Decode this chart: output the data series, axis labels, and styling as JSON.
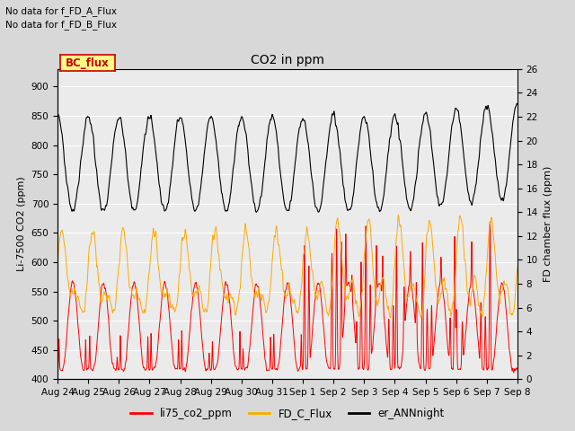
{
  "title": "CO2 in ppm",
  "ylabel_left": "Li-7500 CO2 (ppm)",
  "ylabel_right": "FD chamber flux (ppm)",
  "annotation_lines": [
    "No data for f_FD_A_Flux",
    "No data for f_FD_B_Flux"
  ],
  "bc_flux_label": "BC_flux",
  "legend_labels": [
    "li75_co2_ppm",
    "FD_C_Flux",
    "er_ANNnight"
  ],
  "line_colors": [
    "#ff0000",
    "#ffaa00",
    "#000000"
  ],
  "ylim_left": [
    400,
    930
  ],
  "ylim_right": [
    0,
    26
  ],
  "yticks_left": [
    400,
    450,
    500,
    550,
    600,
    650,
    700,
    750,
    800,
    850,
    900
  ],
  "yticks_right": [
    0,
    2,
    4,
    6,
    8,
    10,
    12,
    14,
    16,
    18,
    20,
    22,
    24,
    26
  ],
  "xtick_labels": [
    "Aug 24",
    "Aug 25",
    "Aug 26",
    "Aug 27",
    "Aug 28",
    "Aug 29",
    "Aug 30",
    "Aug 31",
    "Sep 1",
    "Sep 2",
    "Sep 3",
    "Sep 4",
    "Sep 5",
    "Sep 6",
    "Sep 7",
    "Sep 8"
  ],
  "bg_color": "#d8d8d8",
  "plot_bg_color": "#ebebeb",
  "grid_color": "#ffffff",
  "n_days": 15,
  "points_per_day": 144
}
